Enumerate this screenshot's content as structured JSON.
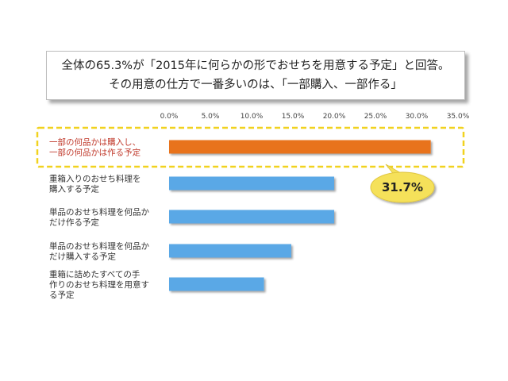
{
  "title": {
    "line1": "全体の65.3%が「2015年に何らかの形でおせちを用意する予定」と回答。",
    "line2": "その用意の仕方で一番多いのは、「一部購入、一部作る」"
  },
  "colors": {
    "highlight_bar": "#e8731f",
    "bar": "#5aa8e6",
    "highlight_box": "#f1d21f",
    "callout": "#f5e15a",
    "highlight_text": "#c0392b"
  },
  "chart_data": {
    "type": "bar",
    "orientation": "horizontal",
    "categories": [
      [
        "一部の何品かは購入し、",
        "一部の何品かは作る予定"
      ],
      [
        "重箱入りのおせち料理を",
        "購入する予定"
      ],
      [
        "単品のおせち料理を何品か",
        "だけ作る予定"
      ],
      [
        "単品のおせち料理を何品か",
        "だけ購入する予定"
      ],
      [
        "重箱に詰めたすべての手",
        "作りのおせち料理を用意す",
        "る予定"
      ]
    ],
    "values": [
      31.7,
      20.0,
      20.0,
      14.8,
      11.5
    ],
    "highlight_index": 0,
    "xlim": [
      0,
      35
    ],
    "ticks": [
      0,
      5,
      10,
      15,
      20,
      25,
      30,
      35
    ],
    "tick_labels": [
      "0.0%",
      "5.0%",
      "10.0%",
      "15.0%",
      "20.0%",
      "25.0%",
      "30.0%",
      "35.0%"
    ],
    "grid": false,
    "annotation": "31.7%"
  }
}
